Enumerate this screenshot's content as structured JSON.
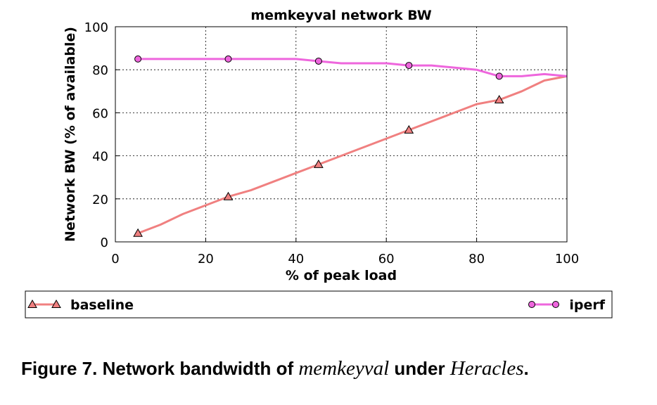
{
  "chart_data": {
    "type": "line",
    "title": "memkeyval network BW",
    "xlabel": "% of peak load",
    "ylabel": "Network BW (% of available)",
    "xlim": [
      0,
      100
    ],
    "ylim": [
      0,
      100
    ],
    "xticks": [
      "0",
      "20",
      "40",
      "60",
      "80",
      "100"
    ],
    "yticks": [
      "0",
      "20",
      "40",
      "60",
      "80",
      "100"
    ],
    "grid": true,
    "legend_position": "bottom",
    "series": [
      {
        "name": "baseline",
        "color": "#f08080",
        "marker": "triangle",
        "x": [
          5,
          10,
          15,
          20,
          25,
          30,
          35,
          40,
          45,
          50,
          55,
          60,
          65,
          70,
          75,
          80,
          85,
          90,
          95,
          100
        ],
        "y": [
          4,
          8,
          13,
          17,
          21,
          24,
          28,
          32,
          36,
          40,
          44,
          48,
          52,
          56,
          60,
          64,
          66,
          70,
          75,
          77
        ],
        "marker_x": [
          5,
          25,
          45,
          65,
          85
        ]
      },
      {
        "name": "iperf",
        "color": "#ee66dd",
        "marker": "circle",
        "x": [
          5,
          10,
          15,
          20,
          25,
          30,
          35,
          40,
          45,
          50,
          55,
          60,
          65,
          70,
          75,
          80,
          85,
          90,
          95,
          100
        ],
        "y": [
          85,
          85,
          85,
          85,
          85,
          85,
          85,
          85,
          84,
          83,
          83,
          83,
          82,
          82,
          81,
          80,
          77,
          77,
          78,
          77
        ],
        "marker_x": [
          5,
          25,
          45,
          65,
          85
        ]
      }
    ]
  },
  "caption": {
    "prefix": "Figure 7. Network bandwidth of ",
    "name1": "memkeyval",
    "middle": " under ",
    "name2": "Heracles",
    "suffix": "."
  }
}
